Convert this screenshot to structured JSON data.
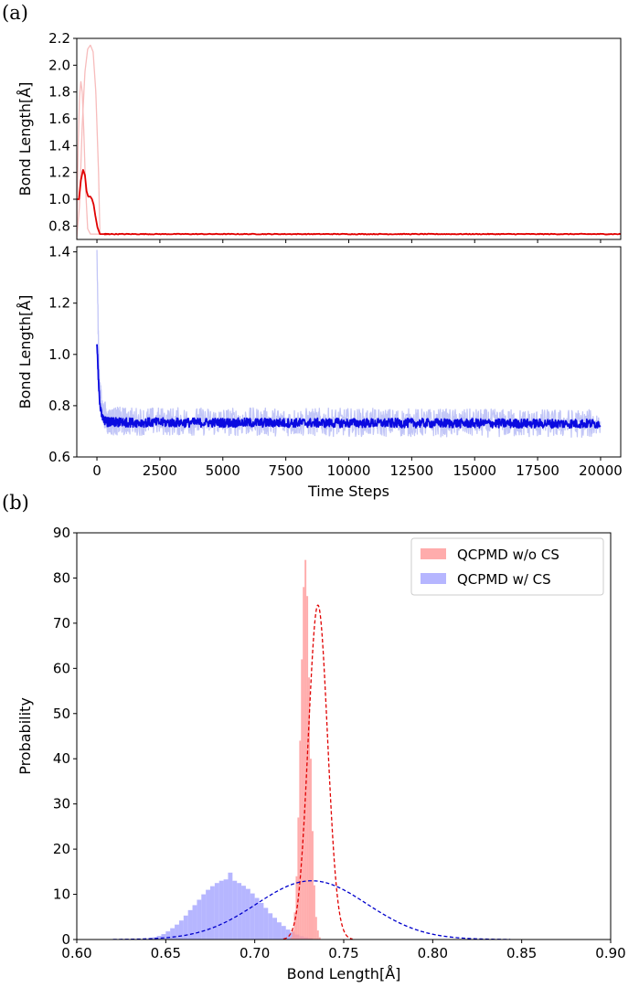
{
  "panels": {
    "a_label": "(a)",
    "b_label": "(b)"
  },
  "chart_data": [
    {
      "type": "line",
      "panel": "a-top",
      "xlim": [
        0,
        20000
      ],
      "ylim": [
        0.7,
        2.2
      ],
      "yticks": [
        "0.8",
        "1.0",
        "1.2",
        "1.4",
        "1.6",
        "1.8",
        "2.0",
        "2.2"
      ],
      "yticks_values": [
        0.8,
        1.0,
        1.2,
        1.4,
        1.6,
        1.8,
        2.0,
        2.2
      ],
      "ylabel": "Bond Length[Å]",
      "colors": {
        "main": "#e00000",
        "faint": "#f7bcbc"
      },
      "series": [
        {
          "style": "main",
          "x": [
            0,
            80,
            150,
            230,
            300,
            360,
            420,
            500,
            560,
            620,
            680,
            760,
            850,
            1500,
            20000
          ],
          "values": [
            1.0,
            1.0,
            1.14,
            1.22,
            1.18,
            1.06,
            1.02,
            1.02,
            1.0,
            0.96,
            0.88,
            0.79,
            0.74,
            0.74,
            0.74
          ]
        },
        {
          "style": "faint",
          "x": [
            0,
            50,
            100,
            150,
            200,
            260,
            320,
            400,
            500,
            1000,
            20000
          ],
          "values": [
            0.7,
            1.4,
            1.76,
            1.88,
            1.8,
            1.5,
            1.1,
            0.78,
            0.74,
            0.74,
            0.74
          ]
        },
        {
          "style": "faint",
          "x": [
            0,
            100,
            200,
            300,
            400,
            500,
            600,
            700,
            800,
            850,
            900,
            20000
          ],
          "values": [
            0.72,
            0.95,
            1.55,
            1.95,
            2.12,
            2.15,
            2.1,
            1.8,
            1.2,
            0.74,
            0.74,
            0.74
          ]
        }
      ],
      "steady_value": 0.74
    },
    {
      "type": "line",
      "panel": "a-bottom",
      "xlim": [
        -800,
        20800
      ],
      "ylim": [
        0.6,
        1.42
      ],
      "xticks": [
        "0",
        "2500",
        "5000",
        "7500",
        "10000",
        "12500",
        "15000",
        "17500",
        "20000"
      ],
      "xticks_values": [
        0,
        2500,
        5000,
        7500,
        10000,
        12500,
        15000,
        17500,
        20000
      ],
      "yticks": [
        "0.6",
        "0.8",
        "1.0",
        "1.2",
        "1.4"
      ],
      "yticks_values": [
        0.6,
        0.8,
        1.0,
        1.2,
        1.4
      ],
      "xlabel": "Time Steps",
      "ylabel": "Bond Length[Å]",
      "colors": {
        "main": "#0a0ae0",
        "faint": "#c2c6f7"
      },
      "series": [
        {
          "style": "main",
          "x": [
            0,
            60,
            120,
            200,
            300,
            500,
            20000
          ],
          "values": [
            1.05,
            0.9,
            0.8,
            0.76,
            0.74,
            0.735,
            0.73
          ],
          "noise_amplitude": 0.018
        },
        {
          "style": "faint",
          "x": [
            0,
            50,
            100,
            200,
            400,
            20000
          ],
          "values": [
            1.4,
            1.1,
            0.9,
            0.8,
            0.74,
            0.73
          ],
          "noise_amplitude": 0.055
        }
      ],
      "steady_value": 0.73
    },
    {
      "type": "histogram",
      "panel": "b",
      "xlim": [
        0.6,
        0.9
      ],
      "ylim": [
        0,
        90
      ],
      "xticks": [
        "0.60",
        "0.65",
        "0.70",
        "0.75",
        "0.80",
        "0.85",
        "0.90"
      ],
      "xticks_values": [
        0.6,
        0.65,
        0.7,
        0.75,
        0.8,
        0.85,
        0.9
      ],
      "yticks": [
        "0",
        "10",
        "20",
        "30",
        "40",
        "50",
        "60",
        "70",
        "80",
        "90"
      ],
      "yticks_values": [
        0,
        10,
        20,
        30,
        40,
        50,
        60,
        70,
        80,
        90
      ],
      "xlabel": "Bond Length[Å]",
      "ylabel": "Probability",
      "legend_position": "top-right",
      "series": [
        {
          "name": "QCPMD w/o CS",
          "fill": "#ff9a9a",
          "fit_color": "#e00000",
          "bin_width": 0.001,
          "bins_start": 0.72,
          "values": [
            0.5,
            2,
            6,
            14,
            27,
            44,
            62,
            78,
            84,
            76,
            58,
            40,
            24,
            12,
            5,
            2,
            0.5
          ],
          "fit_mean": 0.7355,
          "fit_sd": 0.0054,
          "fit_peak": 74
        },
        {
          "name": "QCPMD w/ CS",
          "fill": "#a6a6ff",
          "fit_color": "#0000cc",
          "bin_width": 0.0025,
          "bins_start": 0.64,
          "values": [
            0.3,
            0.5,
            0.8,
            1.2,
            1.8,
            2.5,
            3.3,
            4.2,
            5.3,
            6.5,
            7.6,
            8.8,
            10.0,
            11.0,
            11.8,
            12.5,
            13.0,
            13.3,
            14.8,
            13.0,
            12.5,
            11.9,
            11.2,
            10.2,
            9.2,
            8.1,
            7.0,
            5.8,
            4.8,
            3.8,
            3.0,
            2.2,
            1.6,
            1.1,
            0.7,
            0.5,
            0.3
          ],
          "fit_mean": 0.732,
          "fit_sd": 0.031,
          "fit_peak": 13.0
        }
      ]
    }
  ]
}
